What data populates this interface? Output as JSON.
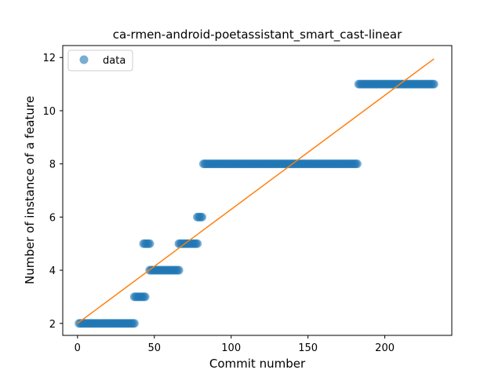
{
  "chart_data": {
    "type": "scatter",
    "title": "ca-rmen-android-poetassistant_smart_cast-linear",
    "xlabel": "Commit number",
    "ylabel": "Number of instance of a feature",
    "xlim": [
      -9.6,
      243.6
    ],
    "ylim": [
      1.55,
      12.45
    ],
    "xticks": [
      0,
      50,
      100,
      150,
      200
    ],
    "yticks": [
      2,
      4,
      6,
      8,
      10,
      12
    ],
    "grid": false,
    "legend": {
      "position": "top-left",
      "entries": [
        "data"
      ]
    },
    "colors": {
      "data": "#1f77b4",
      "fit": "#ff7f0e"
    },
    "series": [
      {
        "name": "data",
        "kind": "points",
        "segments": [
          {
            "x_from": 1,
            "x_to": 37,
            "y": 2
          },
          {
            "x_from": 37,
            "x_to": 44,
            "y": 3
          },
          {
            "x_from": 43,
            "x_to": 47,
            "y": 5
          },
          {
            "x_from": 47,
            "x_to": 66,
            "y": 4
          },
          {
            "x_from": 66,
            "x_to": 78,
            "y": 5
          },
          {
            "x_from": 78,
            "x_to": 81,
            "y": 6
          },
          {
            "x_from": 82,
            "x_to": 182,
            "y": 8
          },
          {
            "x_from": 183,
            "x_to": 232,
            "y": 11
          }
        ]
      },
      {
        "kind": "line",
        "x": [
          0,
          232
        ],
        "y": [
          2.0,
          11.95
        ]
      }
    ]
  }
}
